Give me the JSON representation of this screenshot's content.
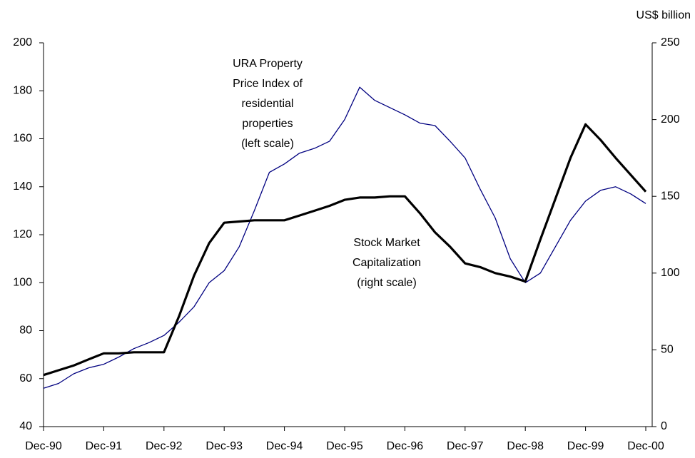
{
  "chart_data": {
    "type": "line",
    "y2_label": "US$ billion",
    "annotations": [
      {
        "lines": [
          "URA Property",
          "Price Index of",
          "residential",
          "properties",
          "(left scale)"
        ]
      },
      {
        "lines": [
          "Stock Market",
          "Capitalization",
          "(right scale)"
        ]
      }
    ],
    "categories": [
      "Dec-90",
      null,
      null,
      null,
      "Dec-91",
      null,
      null,
      null,
      "Dec-92",
      null,
      null,
      null,
      "Dec-93",
      null,
      null,
      null,
      "Dec-94",
      null,
      null,
      null,
      "Dec-95",
      null,
      null,
      null,
      "Dec-96",
      null,
      null,
      null,
      "Dec-97",
      null,
      null,
      null,
      "Dec-98",
      null,
      null,
      null,
      "Dec-99",
      null,
      null,
      null,
      "Dec-00"
    ],
    "series": [
      {
        "color": "#000080",
        "width": 1.3,
        "axis": "y",
        "values": [
          56,
          58,
          62,
          64.5,
          66,
          69,
          72.5,
          75,
          78,
          83.5,
          90,
          100,
          105,
          115,
          130,
          146,
          149.5,
          154,
          156,
          159,
          168,
          181.5,
          176,
          173,
          170,
          166.5,
          165.5,
          159,
          152,
          139,
          127,
          110,
          100,
          104,
          115,
          126,
          134,
          138.5,
          140,
          137,
          133
        ]
      },
      {
        "color": "#000000",
        "width": 3.2,
        "axis": "y2",
        "values": [
          33.6,
          36.7,
          39.8,
          43.8,
          47.7,
          47.7,
          48.4,
          48.4,
          48.4,
          71.9,
          98.4,
          119.5,
          132.8,
          133.6,
          134.4,
          134.4,
          134.4,
          137.5,
          140.6,
          143.8,
          147.7,
          149.2,
          149.2,
          150,
          150,
          139,
          126.6,
          117.2,
          106.3,
          103.9,
          100,
          97.7,
          94.5,
          121.9,
          148.4,
          175,
          196.9,
          186.7,
          175,
          164,
          153
        ]
      }
    ],
    "ylim": [
      40,
      200
    ],
    "yticks": [
      40,
      60,
      80,
      100,
      120,
      140,
      160,
      180,
      200
    ],
    "y2lim": [
      0,
      250
    ],
    "y2ticks": [
      0,
      50,
      100,
      150,
      200,
      250
    ]
  }
}
